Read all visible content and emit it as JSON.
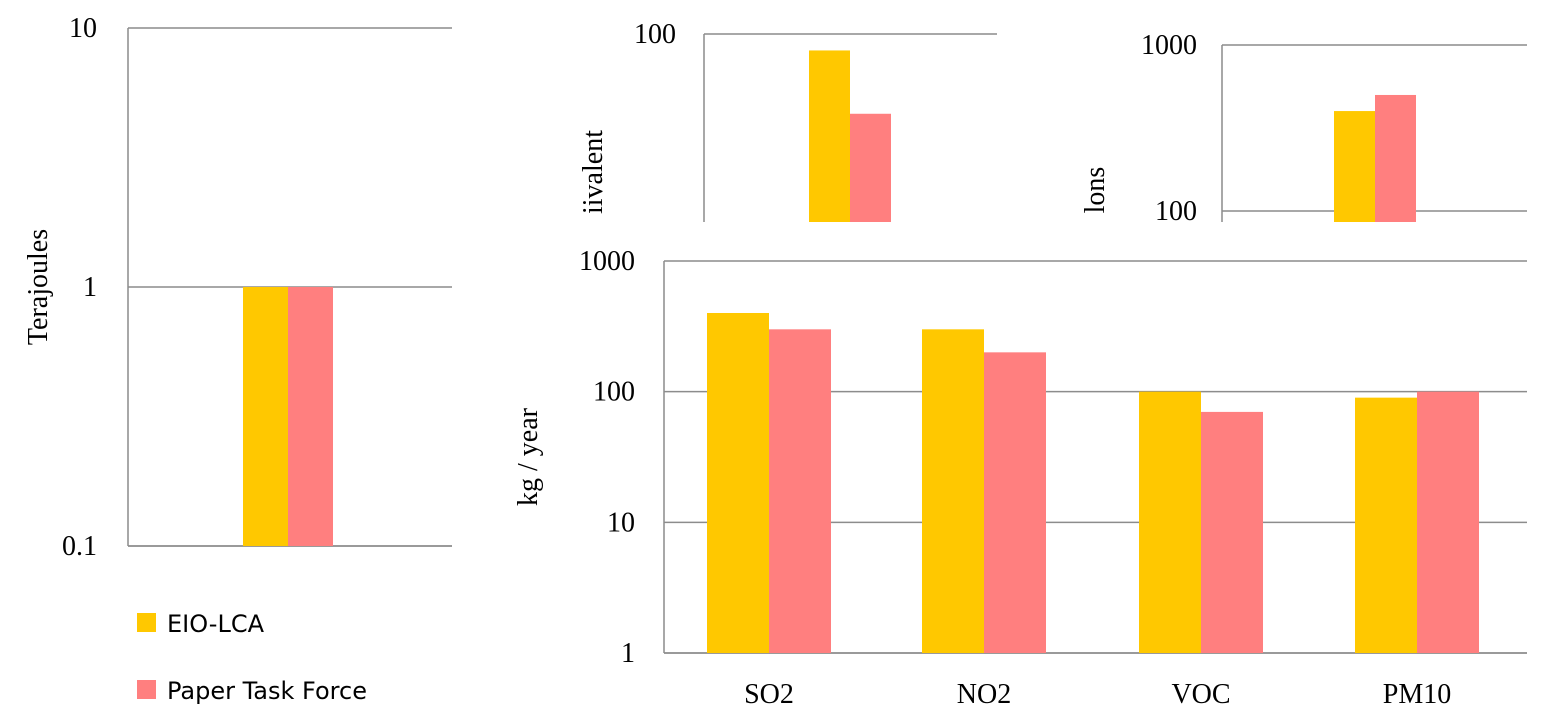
{
  "colors": {
    "eio": "#FFC800",
    "ptf": "#FF7F7F",
    "grid": "#8c8c8c"
  },
  "legend": [
    {
      "label": "EIO-LCA",
      "color": "#FFC800"
    },
    {
      "label": "Paper Task Force",
      "color": "#FF7F7F"
    }
  ],
  "chart_data": [
    {
      "type": "bar",
      "ylabel": "Terajoules",
      "yscale": "log",
      "ylim": [
        0.1,
        10
      ],
      "ytick_labels": [
        "10",
        "1",
        "0.1"
      ],
      "categories": [
        ""
      ],
      "series": [
        {
          "name": "EIO-LCA",
          "values": [
            1
          ]
        },
        {
          "name": "Paper Task Force",
          "values": [
            1
          ]
        }
      ]
    },
    {
      "type": "bar",
      "ylabel": "iivalent",
      "yscale": "log",
      "ylim": [
        30,
        100
      ],
      "ytick_labels": [
        "100"
      ],
      "categories": [
        ""
      ],
      "series": [
        {
          "name": "EIO-LCA",
          "values": [
            90
          ]
        },
        {
          "name": "Paper Task Force",
          "values": [
            60
          ]
        }
      ]
    },
    {
      "type": "bar",
      "ylabel": "lons",
      "yscale": "log",
      "ylim": [
        100,
        1000
      ],
      "ytick_labels": [
        "1000",
        "100"
      ],
      "categories": [
        ""
      ],
      "series": [
        {
          "name": "EIO-LCA",
          "values": [
            400
          ]
        },
        {
          "name": "Paper Task Force",
          "values": [
            500
          ]
        }
      ]
    },
    {
      "type": "bar",
      "ylabel": "kg / year",
      "yscale": "log",
      "ylim": [
        1,
        1000
      ],
      "ytick_labels": [
        "1000",
        "100",
        "10",
        "1"
      ],
      "categories": [
        "SO2",
        "NO2",
        "VOC",
        "PM10"
      ],
      "series": [
        {
          "name": "EIO-LCA",
          "values": [
            400,
            300,
            100,
            90
          ]
        },
        {
          "name": "Paper Task Force",
          "values": [
            300,
            200,
            70,
            100
          ]
        }
      ]
    }
  ]
}
